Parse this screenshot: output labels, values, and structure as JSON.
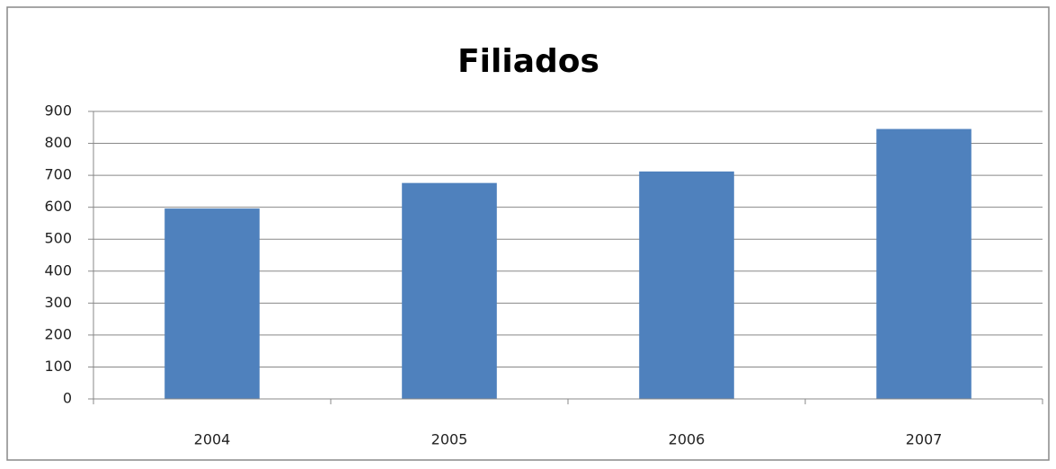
{
  "chart_data": {
    "type": "bar",
    "title": "Filiados",
    "categories": [
      "2004",
      "2005",
      "2006",
      "2007"
    ],
    "values": [
      596,
      676,
      712,
      845
    ],
    "color": "#4f81bd",
    "ylim": [
      0,
      900
    ],
    "yticks": [
      0,
      100,
      200,
      300,
      400,
      500,
      600,
      700,
      800,
      900
    ],
    "grid": true
  }
}
